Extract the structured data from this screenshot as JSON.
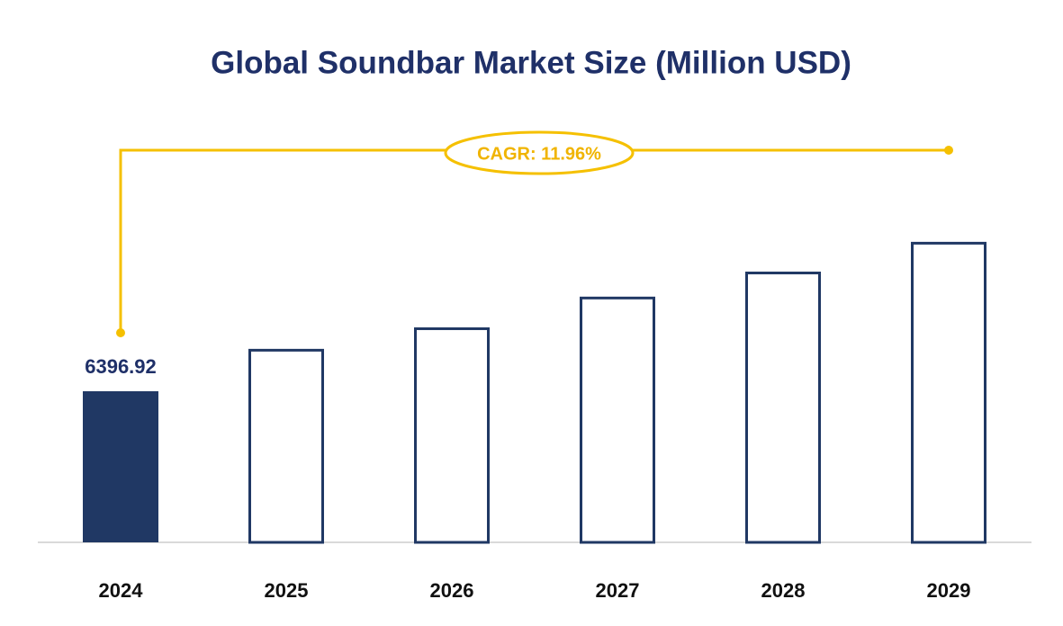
{
  "chart_data": {
    "type": "bar",
    "title": "Global Soundbar Market Size (Million USD)",
    "annotation": "CAGR: 11.96%",
    "categories": [
      "2024",
      "2025",
      "2026",
      "2027",
      "2028",
      "2029"
    ],
    "values": [
      6396.92,
      8190,
      9100,
      10400,
      11460,
      12720
    ],
    "color": "#203864",
    "bar_fills": [
      "#203864",
      "#ffffff",
      "#ffffff",
      "#ffffff",
      "#ffffff",
      "#ffffff"
    ],
    "ylim": [
      0,
      15000
    ]
  }
}
